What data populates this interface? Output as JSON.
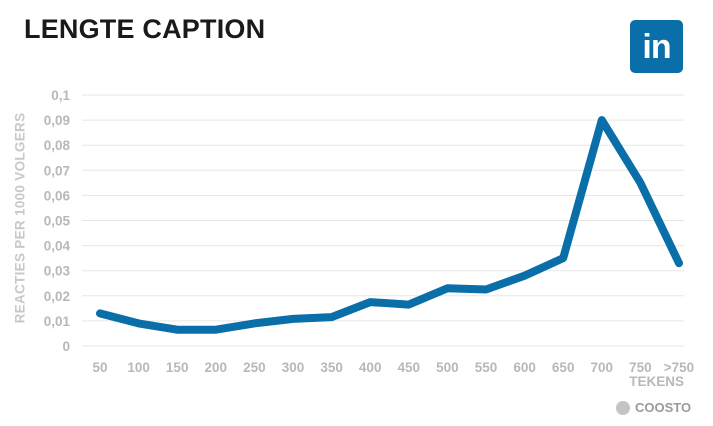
{
  "title": "LENGTE CAPTION",
  "logo": {
    "text": "in",
    "color": "#0a6ea8"
  },
  "brand": {
    "text": "COOSTO",
    "icon": "coosto-globe-icon"
  },
  "colors": {
    "line": "#0a6ea8",
    "grid": "#e6e6e6",
    "tick": "#b8b8b8"
  },
  "chart_data": {
    "type": "line",
    "title": "LENGTE CAPTION",
    "xlabel": "TEKENS",
    "ylabel": "REACTIES PER 1000 VOLGERS",
    "categories": [
      "50",
      "100",
      "150",
      "200",
      "250",
      "300",
      "350",
      "400",
      "450",
      "500",
      "550",
      "600",
      "650",
      "700",
      "750",
      ">750"
    ],
    "values": [
      0.013,
      0.009,
      0.0065,
      0.0065,
      0.009,
      0.0108,
      0.0115,
      0.0175,
      0.0165,
      0.023,
      0.0225,
      0.028,
      0.035,
      0.09,
      0.065,
      0.033
    ],
    "ylim": [
      0,
      0.1
    ],
    "yticks": [
      0,
      0.01,
      0.02,
      0.03,
      0.04,
      0.05,
      0.06,
      0.07,
      0.08,
      0.09,
      0.1
    ],
    "ytick_labels": [
      "0",
      "0,01",
      "0,02",
      "0,03",
      "0,04",
      "0,05",
      "0,06",
      "0,07",
      "0,08",
      "0,09",
      "0,1"
    ],
    "grid": true,
    "legend": "none"
  }
}
